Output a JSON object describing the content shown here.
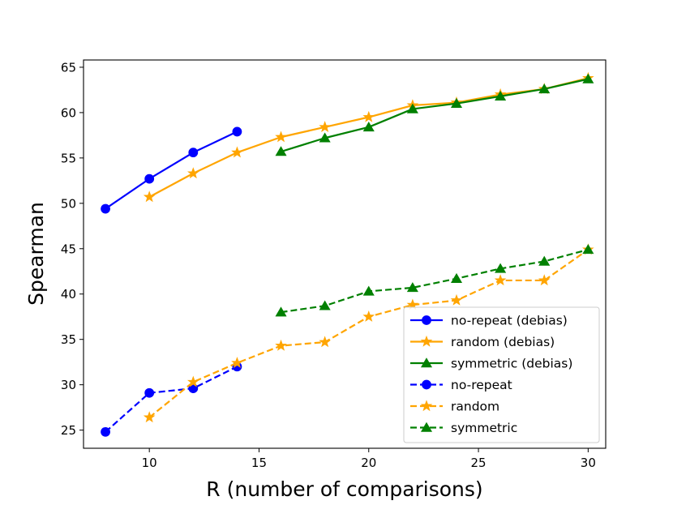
{
  "chart_data": {
    "type": "line",
    "title": "",
    "xlabel": "R (number of comparisons)",
    "ylabel": "Spearman",
    "xlim": [
      7.0,
      30.8
    ],
    "ylim": [
      23.0,
      65.8
    ],
    "xticks": [
      10,
      15,
      20,
      25,
      30
    ],
    "yticks": [
      25,
      30,
      35,
      40,
      45,
      50,
      55,
      60,
      65
    ],
    "grid": false,
    "legend_position": "lower-right",
    "series": [
      {
        "name": "no-repeat (debias)",
        "color": "#0000ff",
        "dash": "solid",
        "marker": "circle",
        "x": [
          8,
          10,
          12,
          14
        ],
        "y": [
          49.4,
          52.7,
          55.6,
          57.9
        ]
      },
      {
        "name": "random (debias)",
        "color": "#ffa500",
        "dash": "solid",
        "marker": "star",
        "x": [
          10,
          12,
          14,
          16,
          18,
          20,
          22,
          24,
          26,
          28,
          30
        ],
        "y": [
          50.7,
          53.3,
          55.6,
          57.3,
          58.4,
          59.5,
          60.8,
          61.1,
          62.0,
          62.6,
          63.8
        ]
      },
      {
        "name": "symmetric (debias)",
        "color": "#008000",
        "dash": "solid",
        "marker": "triangle",
        "x": [
          16,
          18,
          20,
          22,
          24,
          26,
          28,
          30
        ],
        "y": [
          55.7,
          57.2,
          58.4,
          60.4,
          61.0,
          61.8,
          62.6,
          63.7
        ]
      },
      {
        "name": "no-repeat",
        "color": "#0000ff",
        "dash": "dashed",
        "marker": "circle",
        "x": [
          8,
          10,
          12,
          14
        ],
        "y": [
          24.8,
          29.1,
          29.6,
          32.0
        ]
      },
      {
        "name": "random",
        "color": "#ffa500",
        "dash": "dashed",
        "marker": "star",
        "x": [
          10,
          12,
          14,
          16,
          18,
          20,
          22,
          24,
          26,
          28,
          30
        ],
        "y": [
          26.4,
          30.3,
          32.4,
          34.3,
          34.7,
          37.5,
          38.8,
          39.3,
          41.5,
          41.5,
          44.9
        ]
      },
      {
        "name": "symmetric",
        "color": "#008000",
        "dash": "dashed",
        "marker": "triangle",
        "x": [
          16,
          18,
          20,
          22,
          24,
          26,
          28,
          30
        ],
        "y": [
          38.0,
          38.7,
          40.3,
          40.7,
          41.7,
          42.8,
          43.6,
          44.9
        ]
      }
    ]
  }
}
